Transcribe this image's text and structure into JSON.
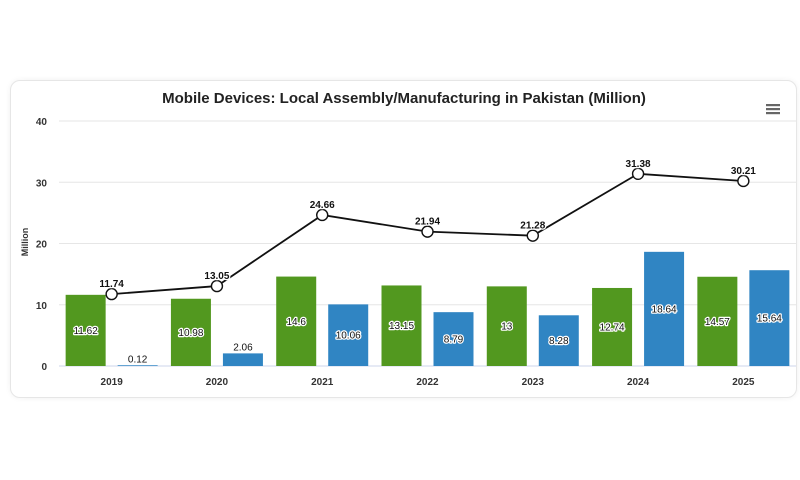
{
  "chart_data": {
    "type": "bar",
    "title": "Mobile Devices: Local Assembly/Manufacturing in Pakistan (Million)",
    "ylabel": "Million",
    "xlabel": "",
    "ylim": [
      0,
      40
    ],
    "yticks": [
      0,
      10,
      20,
      30,
      40
    ],
    "categories": [
      "2019",
      "2020",
      "2021",
      "2022",
      "2023",
      "2024",
      "2025"
    ],
    "series": [
      {
        "type": "bar",
        "color": "#52981f",
        "values": [
          11.62,
          10.98,
          14.6,
          13.15,
          13,
          12.74,
          14.57
        ]
      },
      {
        "type": "bar",
        "color": "#3085c3",
        "values": [
          0.12,
          2.06,
          10.06,
          8.79,
          8.28,
          18.64,
          15.64
        ]
      },
      {
        "type": "line",
        "color": "#111111",
        "values": [
          11.74,
          13.05,
          24.66,
          21.94,
          21.28,
          31.38,
          30.21
        ]
      }
    ],
    "grid": true,
    "menu_icon": "hamburger-menu-icon"
  }
}
